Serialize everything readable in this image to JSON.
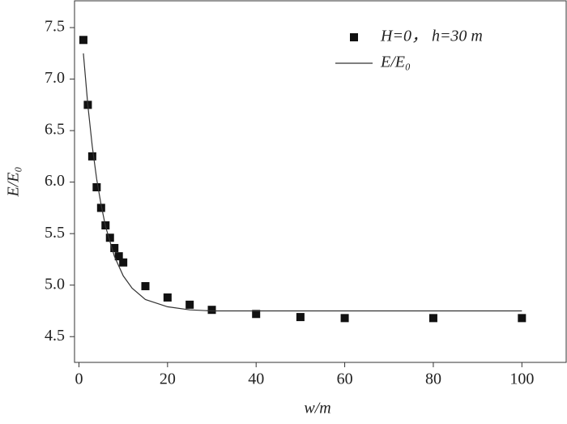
{
  "chart_data": {
    "type": "scatter",
    "x_label": "w/m",
    "y_label": "E/E₀",
    "xlim": [
      -1,
      110
    ],
    "ylim": [
      4.25,
      7.76
    ],
    "xticks": [
      0,
      20,
      40,
      60,
      80,
      100
    ],
    "yticks": [
      4.5,
      {
        "value": 5,
        "label": "5.0"
      },
      5.5,
      {
        "value": 6,
        "label": "6.0"
      },
      6.5,
      {
        "value": 7,
        "label": "7.0"
      },
      7.5
    ],
    "legend": "upper right",
    "series": [
      {
        "name": "H=0， h=30 m",
        "type": "scatter",
        "color": "#111111",
        "x": [
          1,
          2,
          3,
          4,
          5,
          6,
          7,
          8,
          9,
          10,
          15,
          20,
          25,
          30,
          40,
          50,
          60,
          80,
          100
        ],
        "values": [
          7.38,
          6.75,
          6.25,
          5.95,
          5.75,
          5.58,
          5.46,
          5.36,
          5.28,
          5.22,
          4.99,
          4.88,
          4.81,
          4.76,
          4.72,
          4.69,
          4.68,
          4.68,
          4.68
        ]
      },
      {
        "name": "E/E₀",
        "type": "line",
        "color": "#333333",
        "x": [
          1,
          2,
          3,
          4,
          5,
          6,
          8,
          10,
          12,
          15,
          20,
          25,
          30,
          40,
          60,
          80,
          100
        ],
        "values": [
          7.25,
          6.75,
          6.35,
          6.03,
          5.78,
          5.57,
          5.28,
          5.09,
          4.97,
          4.86,
          4.79,
          4.76,
          4.75,
          4.75,
          4.75,
          4.75,
          4.75
        ]
      }
    ]
  }
}
